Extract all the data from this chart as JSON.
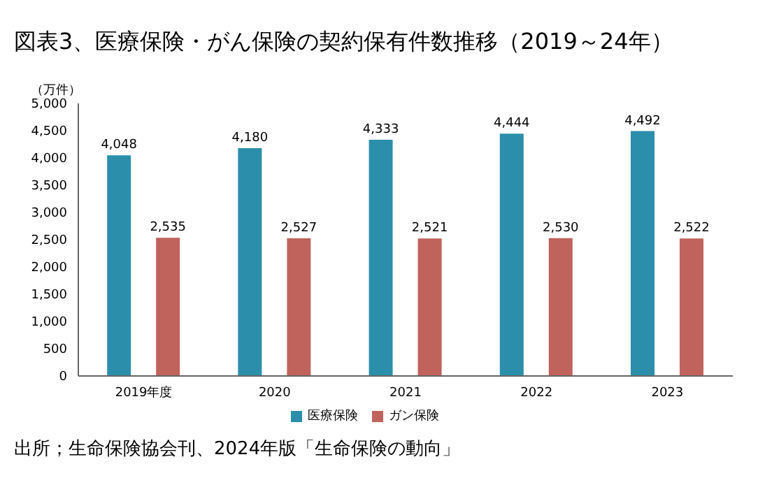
{
  "chart_data": {
    "type": "bar",
    "title": "図表3、医療保険・がん保険の契約保有件数推移（2019～24年）",
    "ylabel": "（万件）",
    "categories": [
      "2019年度",
      "2020",
      "2021",
      "2022",
      "2023"
    ],
    "series": [
      {
        "name": "医療保険",
        "color": "#2b8fab",
        "values": [
          4048,
          4180,
          4333,
          4444,
          4492
        ],
        "value_labels": [
          "4,048",
          "4,180",
          "4,333",
          "4,444",
          "4,492"
        ]
      },
      {
        "name": "ガン保険",
        "color": "#c0635c",
        "values": [
          2535,
          2527,
          2521,
          2530,
          2522
        ],
        "value_labels": [
          "2,535",
          "2,527",
          "2,521",
          "2,530",
          "2,522"
        ]
      }
    ],
    "ylim": [
      0,
      5000
    ],
    "yticks": [
      0,
      {
        "value": 500,
        "label": "500"
      },
      {
        "value": 1000,
        "label": "1,000"
      },
      {
        "value": 1500,
        "label": "1,500"
      },
      {
        "value": 2000,
        "label": "2,000"
      },
      {
        "value": 2500,
        "label": "2,500"
      },
      {
        "value": 3000,
        "label": "3,000"
      },
      {
        "value": 3500,
        "label": "3,500"
      },
      {
        "value": 4000,
        "label": "4,000"
      },
      {
        "value": 4500,
        "label": "4,500"
      },
      {
        "value": 5000,
        "label": "5,000"
      }
    ],
    "grid": false,
    "legend": "bottom",
    "annotations": [
      "出所；生命保険協会刊、2024年版「生命保険の動向」"
    ]
  }
}
